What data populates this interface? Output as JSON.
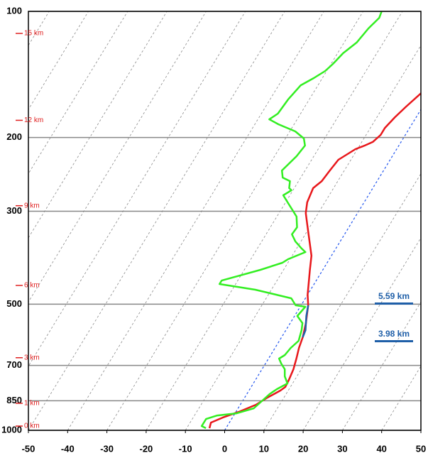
{
  "chart_data": {
    "type": "skewt",
    "xlim": [
      -50,
      50
    ],
    "xticks": [
      -50,
      -40,
      -30,
      -20,
      -10,
      0,
      10,
      20,
      30,
      40,
      50
    ],
    "ylim": [
      1000,
      100
    ],
    "yticks": [
      100,
      200,
      300,
      500,
      700,
      850,
      1000
    ],
    "log_y": true,
    "grid": true,
    "highlight_isotherm": 0,
    "isotherm_color": "#888888",
    "highlight_color": "#2255ee",
    "altitudes": [
      {
        "label": "15 km",
        "pressure": 112.9
      },
      {
        "label": "12 km",
        "pressure": 182
      },
      {
        "label": "9 km",
        "pressure": 291
      },
      {
        "label": "6 km",
        "pressure": 451
      },
      {
        "label": "3 km",
        "pressure": 671
      },
      {
        "label": "1 km",
        "pressure": 862
      },
      {
        "label": "0 km",
        "pressure": 977
      }
    ],
    "annotations": [
      "5.59 km",
      "3.98 km"
    ],
    "series": [
      {
        "color": "#e8171b",
        "pressure": [
          100,
          109.8,
          121.1,
          128.4,
          141.5,
          150.1,
          156.1,
          168.7,
          178.9,
          189.7,
          197.2,
          205.0,
          209.1,
          213.2,
          217.4,
          226.1,
          239.8,
          254.2,
          264.2,
          285.6,
          302.9,
          327.6,
          354.2,
          383.0,
          413.9,
          447.6,
          474.6,
          503.0,
          554.7,
          599.8,
          636.0,
          674.3,
          714.9,
          758.0,
          788.2,
          803.7,
          835.6,
          869.0,
          903.7,
          932.4,
          958.4,
          988.3
        ],
        "values": [
          2.7,
          2.4,
          1.8,
          0.7,
          0.2,
          -0.5,
          -2.4,
          -4.2,
          -5.4,
          -6.3,
          -6.3,
          -7.2,
          -8.7,
          -10.5,
          -11.4,
          -13.2,
          -13.7,
          -14.1,
          -15.2,
          -14.5,
          -13.2,
          -10.5,
          -7.8,
          -5.1,
          -3.3,
          -1.4,
          0,
          1.8,
          4.0,
          5.4,
          6.1,
          7.1,
          8.0,
          8.5,
          8.7,
          8.0,
          5.8,
          4.0,
          0.7,
          -2.5,
          -4.7,
          -4.2
        ]
      },
      {
        "color": "#33ee22",
        "pressure": [
          100,
          103.6,
          109.8,
          118.7,
          125.9,
          133.5,
          138.8,
          144.3,
          150.1,
          162.3,
          175.4,
          181.0,
          186.0,
          193.4,
          201.1,
          209.1,
          221.7,
          239.8,
          249.3,
          254.2,
          264.2,
          267.3,
          274.8,
          285.6,
          308.9,
          327.6,
          340.6,
          354.2,
          368.3,
          375.5,
          390.4,
          398.1,
          413.9,
          439.0,
          447.6,
          461.8,
          484.0,
          503.0,
          507.0,
          533.5,
          554.7,
          576.8,
          611.6,
          636.0,
          661.2,
          674.3,
          692.9,
          714.9,
          743.3,
          772.9,
          797.5,
          819.6,
          852.1,
          886.2,
          910.8,
          921.5,
          939.8,
          976.8,
          988.3
        ],
        "values": [
          -25.3,
          -24.9,
          -26.0,
          -26.8,
          -28.6,
          -29.5,
          -30.4,
          -32.2,
          -34.4,
          -35.4,
          -35.8,
          -37.1,
          -34.0,
          -28.6,
          -25.3,
          -23.9,
          -24.4,
          -25.9,
          -24.6,
          -22.2,
          -21.3,
          -20.4,
          -21.7,
          -19.5,
          -15.0,
          -13.2,
          -13.4,
          -11.4,
          -8.7,
          -7.2,
          -10.5,
          -11.4,
          -15.9,
          -24.1,
          -24.1,
          -14.1,
          -3.6,
          -1.4,
          1.3,
          0.7,
          3.1,
          4.0,
          4.9,
          4.0,
          3.6,
          2.7,
          4.0,
          5.8,
          6.9,
          8.7,
          6.9,
          5.8,
          4.9,
          4.0,
          0.4,
          -4.2,
          -6.5,
          -6.5,
          -5.1
        ]
      },
      {
        "color": "#1f5fa8",
        "pressure": [
          503.0,
          533.5,
          554.7,
          576.8,
          599.8
        ],
        "values": [
          1.8,
          3.0,
          4.0,
          5.0,
          5.4
        ]
      }
    ]
  }
}
